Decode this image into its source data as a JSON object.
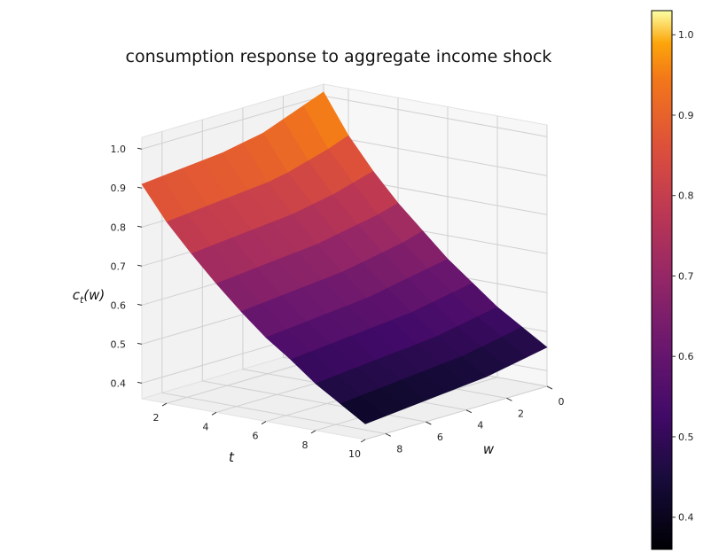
{
  "chart_data": {
    "type": "surface",
    "title": "consumption response to aggregate income shock",
    "xlabel": "w",
    "ylabel": "t",
    "zlabel_base": "c",
    "zlabel_sub": "t",
    "zlabel_arg": "(w)",
    "w_range": [
      0,
      9
    ],
    "t_range": [
      1,
      10
    ],
    "zlim": [
      0.36,
      1.03
    ],
    "w_ticks": [
      "0",
      "2",
      "4",
      "6",
      "8"
    ],
    "t_ticks": [
      "2",
      "4",
      "6",
      "8",
      "10"
    ],
    "z_ticks": [
      "0.4",
      "0.5",
      "0.6",
      "0.7",
      "0.8",
      "0.9",
      "1.0"
    ],
    "colorbar_ticks": [
      "0.4",
      "0.5",
      "0.6",
      "0.7",
      "0.8",
      "0.9",
      "1.0"
    ],
    "colormap": "inferno",
    "colorbar_range": [
      0.36,
      1.03
    ],
    "w_values": [
      0,
      1,
      2,
      3,
      4,
      5,
      6,
      7,
      8,
      9
    ],
    "t_values": [
      1,
      2,
      3,
      4,
      5,
      6,
      7,
      8,
      9,
      10
    ],
    "z_values": [
      [
        1.01,
        0.99,
        0.97,
        0.95,
        0.94,
        0.93,
        0.925,
        0.92,
        0.915,
        0.91
      ],
      [
        0.91,
        0.89,
        0.875,
        0.86,
        0.85,
        0.845,
        0.84,
        0.835,
        0.83,
        0.825
      ],
      [
        0.83,
        0.815,
        0.8,
        0.79,
        0.78,
        0.775,
        0.77,
        0.765,
        0.76,
        0.755
      ],
      [
        0.76,
        0.745,
        0.735,
        0.725,
        0.715,
        0.71,
        0.705,
        0.7,
        0.695,
        0.69
      ],
      [
        0.7,
        0.685,
        0.675,
        0.665,
        0.655,
        0.65,
        0.645,
        0.64,
        0.635,
        0.63
      ],
      [
        0.64,
        0.63,
        0.62,
        0.61,
        0.6,
        0.595,
        0.59,
        0.585,
        0.58,
        0.575
      ],
      [
        0.59,
        0.58,
        0.57,
        0.56,
        0.555,
        0.55,
        0.545,
        0.54,
        0.535,
        0.53
      ],
      [
        0.54,
        0.53,
        0.52,
        0.51,
        0.505,
        0.5,
        0.495,
        0.49,
        0.485,
        0.48
      ],
      [
        0.5,
        0.49,
        0.48,
        0.47,
        0.465,
        0.46,
        0.455,
        0.45,
        0.445,
        0.44
      ],
      [
        0.46,
        0.45,
        0.44,
        0.43,
        0.425,
        0.42,
        0.415,
        0.41,
        0.405,
        0.4
      ]
    ]
  }
}
